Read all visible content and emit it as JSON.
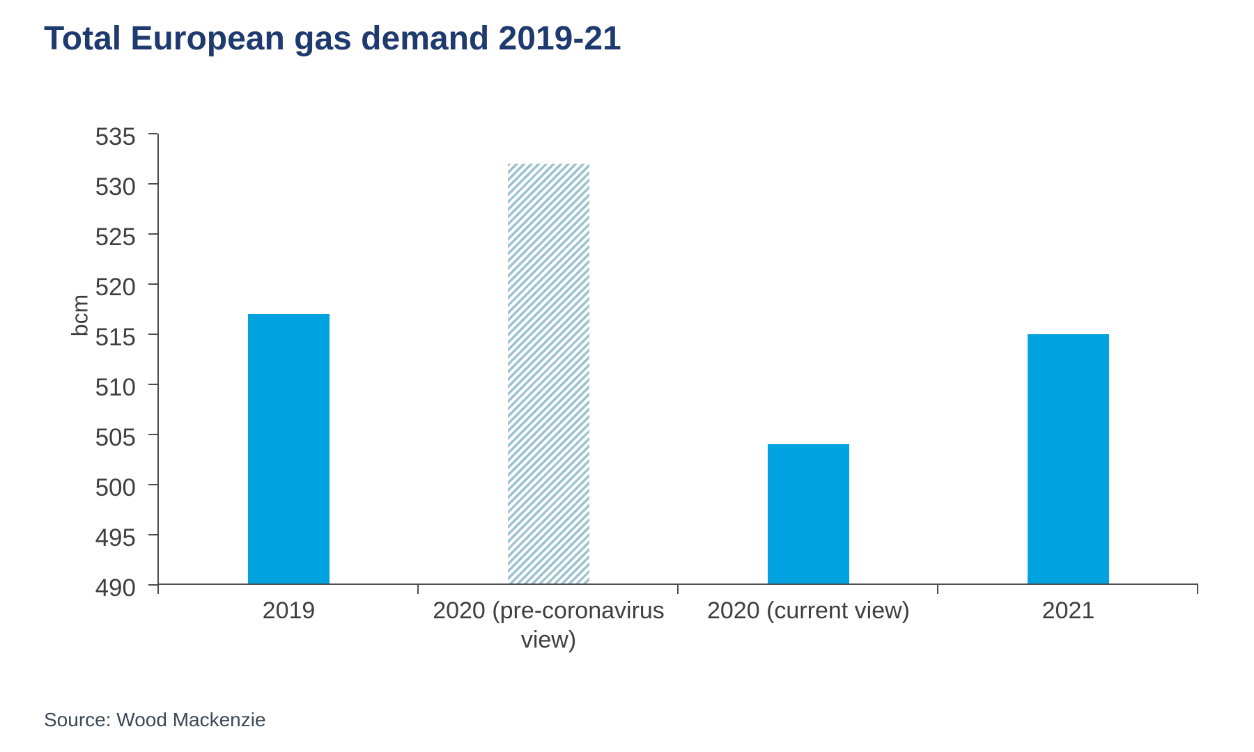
{
  "title": "Total European gas demand 2019-21",
  "source": "Source: Wood Mackenzie",
  "chart_data": {
    "type": "bar",
    "title": "Total European gas demand 2019-21",
    "categories": [
      "2019",
      "2020 (pre-coronavirus view)",
      "2020 (current view)",
      "2021"
    ],
    "values": [
      517,
      532,
      504,
      515
    ],
    "bar_styles": [
      "solid",
      "hatched",
      "solid",
      "solid"
    ],
    "xlabel": "",
    "ylabel": "bcm",
    "ylim": [
      490,
      535
    ],
    "y_ticks": [
      490,
      495,
      500,
      505,
      510,
      515,
      520,
      525,
      530,
      535
    ],
    "grid": false,
    "legend": "none",
    "source": "Source: Wood Mackenzie",
    "colors": {
      "bar_solid": "#00a3e0",
      "bar_hatch_stripe": "#9cc2cf",
      "axis": "#4d4d4d",
      "tick_label": "#3f3f3f",
      "title": "#1e3a6e",
      "source_text": "#3c4856"
    }
  }
}
